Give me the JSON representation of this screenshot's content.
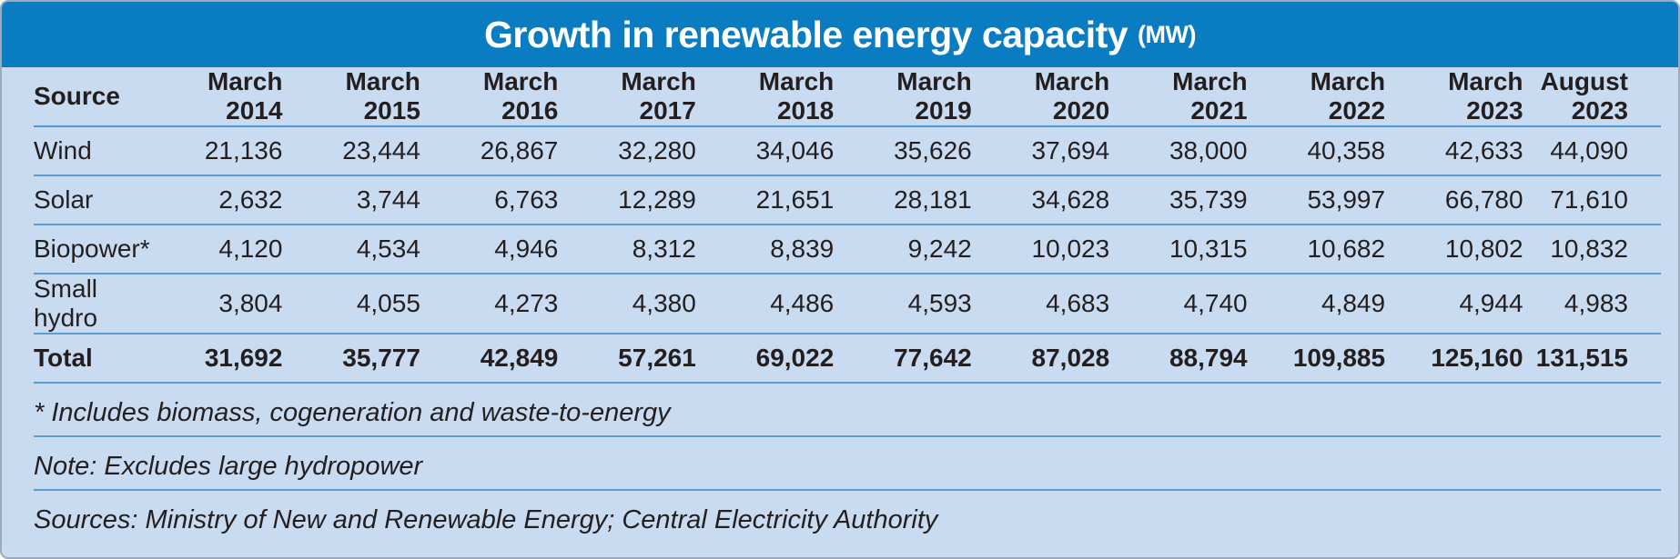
{
  "title": {
    "main": "Growth in renewable energy capacity",
    "unit": "(MW)"
  },
  "table": {
    "columns": [
      "Source",
      "March 2014",
      "March 2015",
      "March 2016",
      "March 2017",
      "March 2018",
      "March 2019",
      "March 2020",
      "March 2021",
      "March 2022",
      "March 2023",
      "August 2023"
    ],
    "rows": [
      {
        "label": "Wind",
        "bold": false,
        "values": [
          "21,136",
          "23,444",
          "26,867",
          "32,280",
          "34,046",
          "35,626",
          "37,694",
          "38,000",
          "40,358",
          "42,633",
          "44,090"
        ]
      },
      {
        "label": "Solar",
        "bold": false,
        "values": [
          "2,632",
          "3,744",
          "6,763",
          "12,289",
          "21,651",
          "28,181",
          "34,628",
          "35,739",
          "53,997",
          "66,780",
          "71,610"
        ]
      },
      {
        "label": "Biopower*",
        "bold": false,
        "values": [
          "4,120",
          "4,534",
          "4,946",
          "8,312",
          "8,839",
          "9,242",
          "10,023",
          "10,315",
          "10,682",
          "10,802",
          "10,832"
        ]
      },
      {
        "label": "Small hydro",
        "bold": false,
        "values": [
          "3,804",
          "4,055",
          "4,273",
          "4,380",
          "4,486",
          "4,593",
          "4,683",
          "4,740",
          "4,849",
          "4,944",
          "4,983"
        ]
      },
      {
        "label": "Total",
        "bold": true,
        "values": [
          "31,692",
          "35,777",
          "42,849",
          "57,261",
          "69,022",
          "77,642",
          "87,028",
          "88,794",
          "109,885",
          "125,160",
          "131,515"
        ]
      }
    ]
  },
  "footnotes": [
    "* Includes biomass, cogeneration and waste-to-energy",
    "Note: Excludes large hydropower",
    "Sources: Ministry of New and Renewable Energy; Central Electricity Authority"
  ],
  "colors": {
    "title_bar": "#0a7dc2",
    "background": "#c9dbf0",
    "separator": "#5d9bd3",
    "text": "#231f20",
    "title_text": "#ffffff"
  },
  "chart_data": {
    "type": "table",
    "title": "Growth in renewable energy capacity (MW)",
    "categories": [
      "March 2014",
      "March 2015",
      "March 2016",
      "March 2017",
      "March 2018",
      "March 2019",
      "March 2020",
      "March 2021",
      "March 2022",
      "March 2023",
      "August 2023"
    ],
    "series": [
      {
        "name": "Wind",
        "values": [
          21136,
          23444,
          26867,
          32280,
          34046,
          35626,
          37694,
          38000,
          40358,
          42633,
          44090
        ]
      },
      {
        "name": "Solar",
        "values": [
          2632,
          3744,
          6763,
          12289,
          21651,
          28181,
          34628,
          35739,
          53997,
          66780,
          71610
        ]
      },
      {
        "name": "Biopower*",
        "values": [
          4120,
          4534,
          4946,
          8312,
          8839,
          9242,
          10023,
          10315,
          10682,
          10802,
          10832
        ]
      },
      {
        "name": "Small hydro",
        "values": [
          3804,
          4055,
          4273,
          4380,
          4486,
          4593,
          4683,
          4740,
          4849,
          4944,
          4983
        ]
      },
      {
        "name": "Total",
        "values": [
          31692,
          35777,
          42849,
          57261,
          69022,
          77642,
          87028,
          88794,
          109885,
          125160,
          131515
        ]
      }
    ],
    "unit": "MW",
    "notes": [
      "* Includes biomass, cogeneration and waste-to-energy",
      "Note: Excludes large hydropower",
      "Sources: Ministry of New and Renewable Energy; Central Electricity Authority"
    ]
  }
}
